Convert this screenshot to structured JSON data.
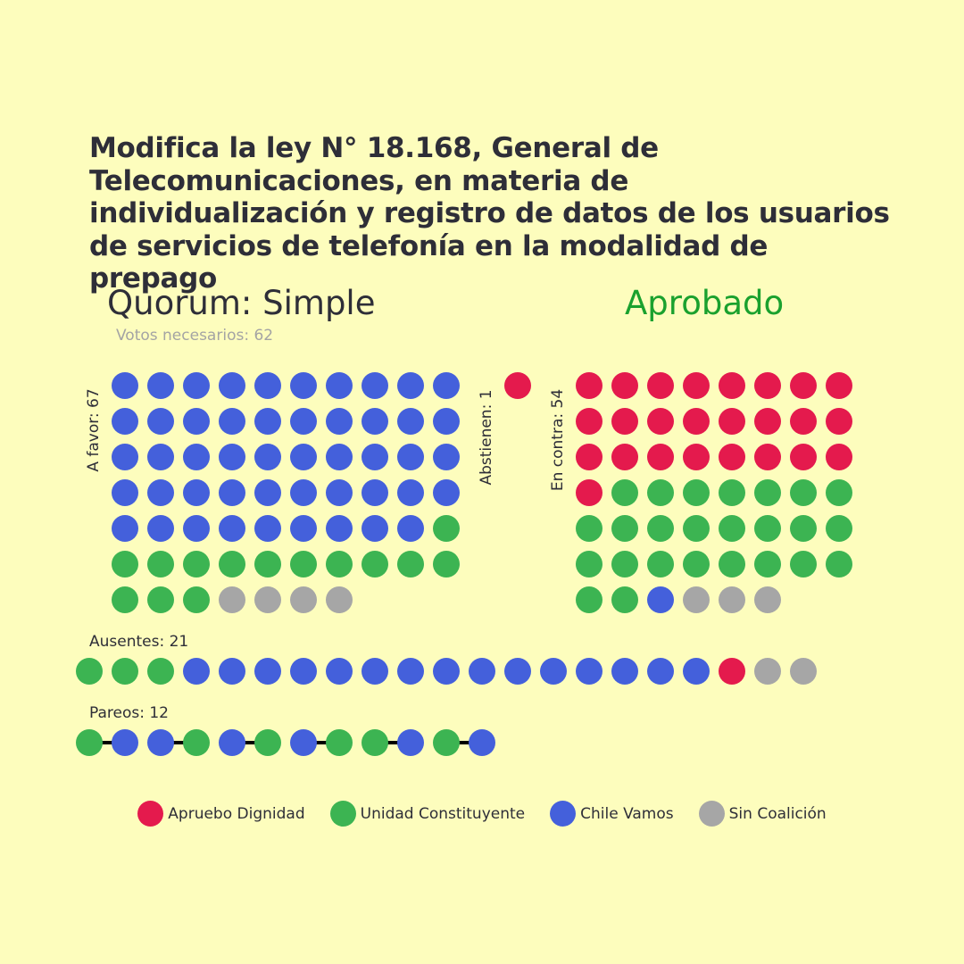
{
  "title": "Modifica la ley N° 18.168, General de Telecomunicaciones, en materia de individualización y registro de datos de los usuarios de servicios de telefonía en la modalidad de prepago",
  "quorum": "Quorum: Simple",
  "needed": "Votos necesarios: 62",
  "result": "Aprobado",
  "result_color": "#1aa12e",
  "colors": {
    "apruebo": "#e41a4d",
    "unidad": "#3cb452",
    "chile": "#4460db",
    "sin": "#a6a6a6"
  },
  "chart_data": {
    "type": "dot-matrix",
    "groups": [
      {
        "label": "A favor: 67",
        "counts": {
          "chile": 49,
          "unidad": 14,
          "sin": 4
        },
        "order": [
          "chile",
          "unidad",
          "sin"
        ]
      },
      {
        "label": "Abstienen: 1",
        "counts": {
          "apruebo": 1
        },
        "order": [
          "apruebo"
        ]
      },
      {
        "label": "En contra: 54",
        "counts": {
          "apruebo": 25,
          "unidad": 25,
          "chile": 1,
          "sin": 3
        },
        "order": [
          "apruebo",
          "unidad",
          "chile",
          "sin"
        ]
      }
    ],
    "absent": {
      "label": "Ausentes: 21",
      "sequence": [
        "unidad",
        "unidad",
        "unidad",
        "chile",
        "chile",
        "chile",
        "chile",
        "chile",
        "chile",
        "chile",
        "chile",
        "chile",
        "chile",
        "chile",
        "chile",
        "chile",
        "chile",
        "chile",
        "apruebo",
        "sin",
        "sin"
      ]
    },
    "pairs": {
      "label": "Pareos: 12",
      "sequence": [
        [
          "unidad",
          "chile"
        ],
        [
          "chile",
          "unidad"
        ],
        [
          "chile",
          "unidad"
        ],
        [
          "chile",
          "unidad"
        ],
        [
          "unidad",
          "chile"
        ],
        [
          "unidad",
          "chile"
        ]
      ]
    }
  },
  "legend": [
    {
      "key": "apruebo",
      "label": "Apruebo Dignidad"
    },
    {
      "key": "unidad",
      "label": "Unidad Constituyente"
    },
    {
      "key": "chile",
      "label": "Chile Vamos"
    },
    {
      "key": "sin",
      "label": "Sin Coalición"
    }
  ]
}
